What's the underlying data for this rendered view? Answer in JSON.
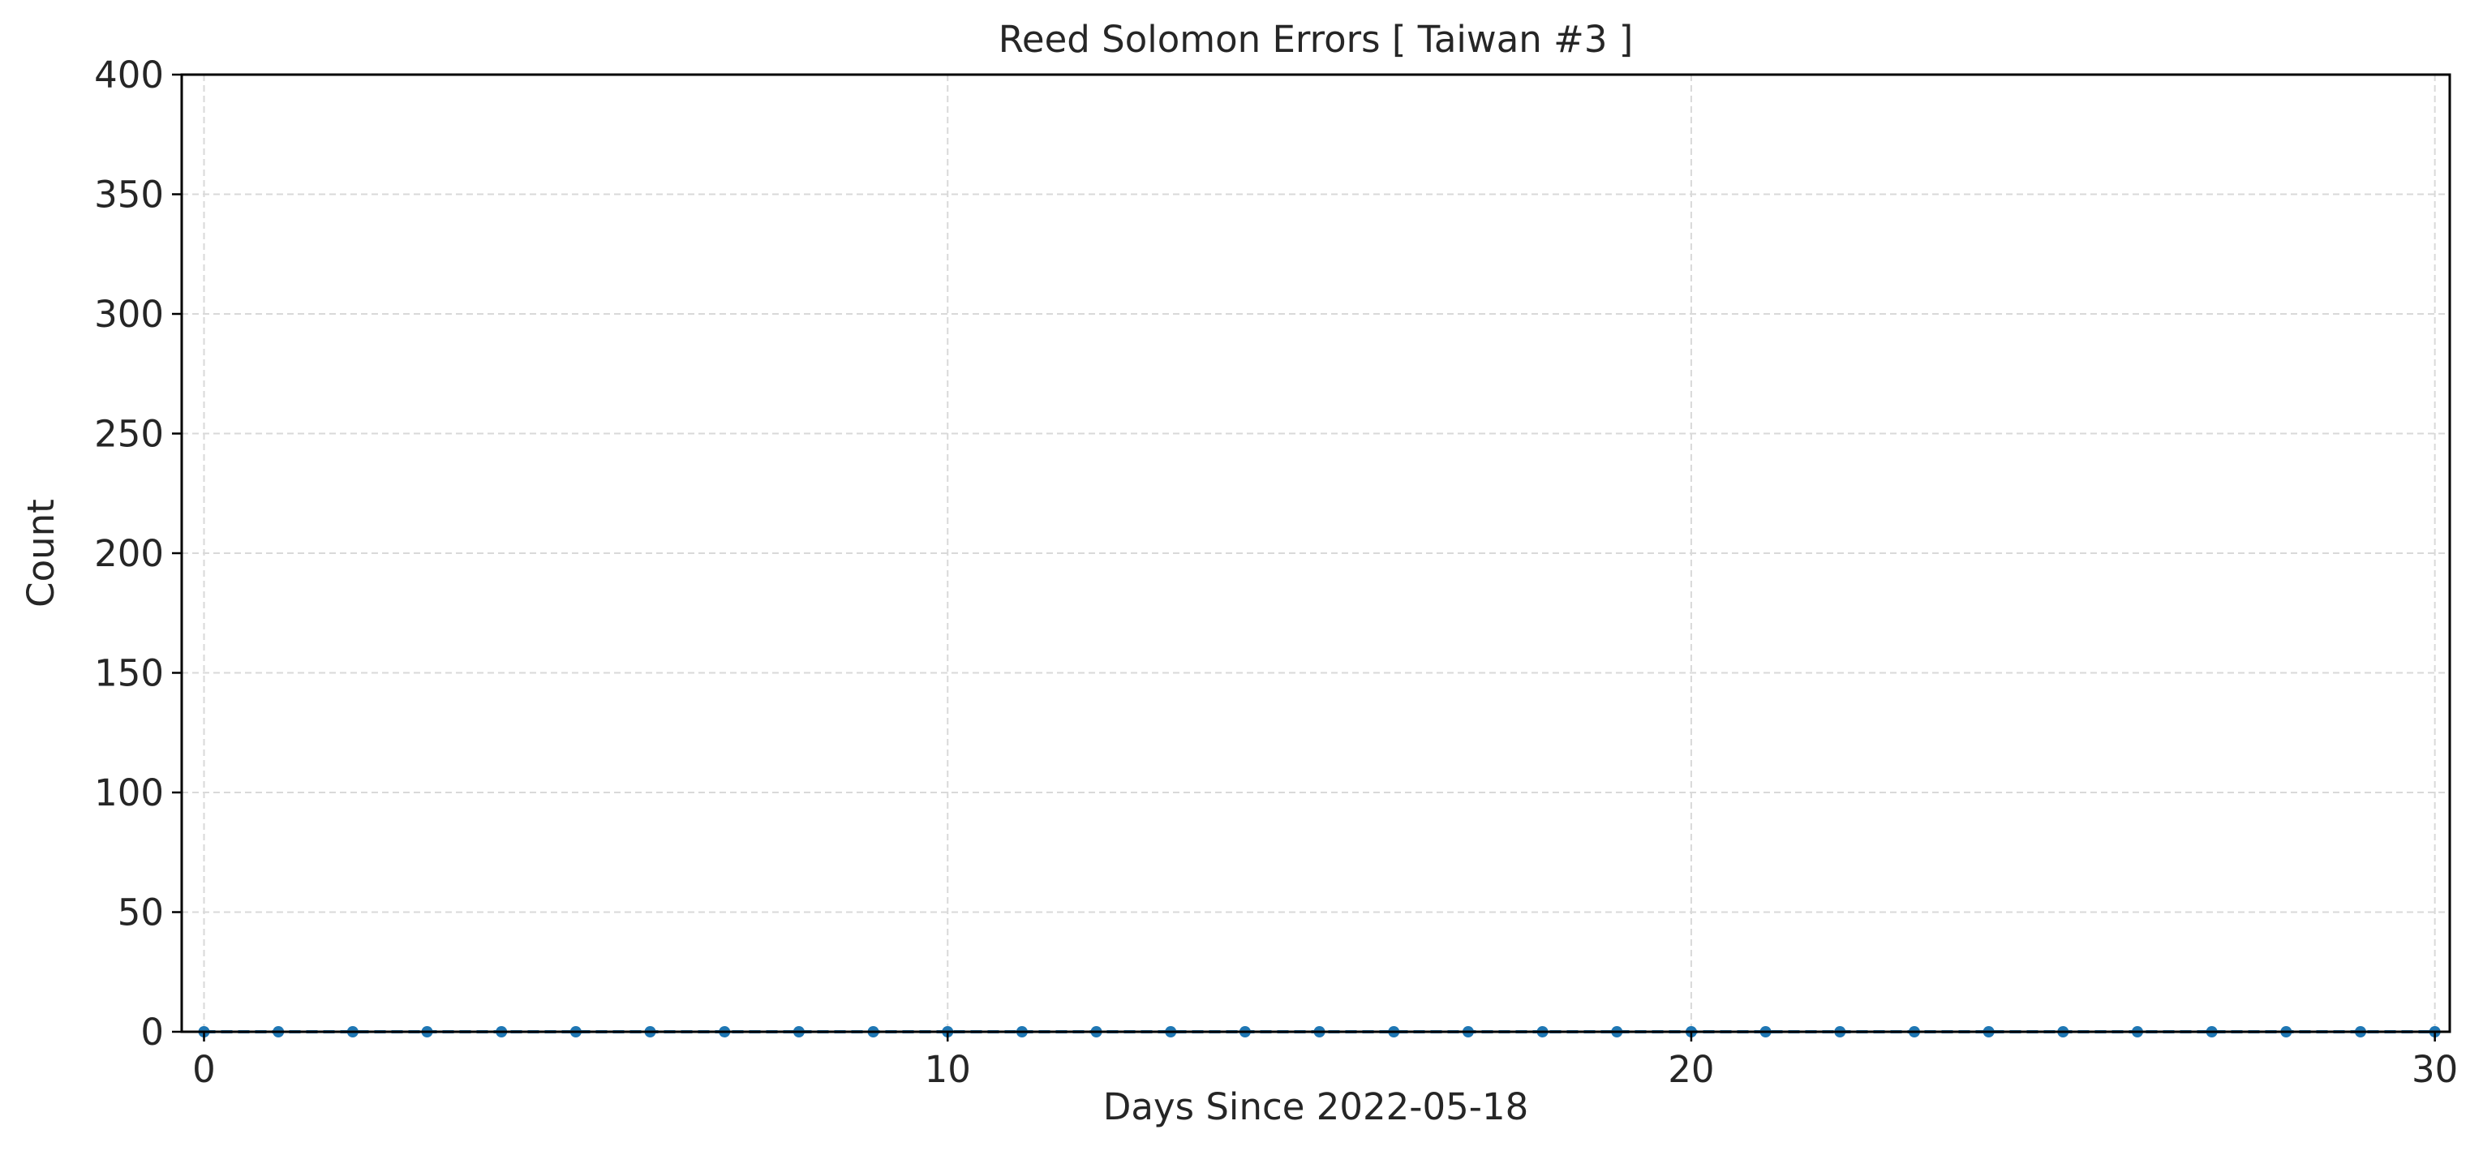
{
  "chart_data": {
    "type": "line",
    "title": "Reed Solomon Errors [ Taiwan #3 ]",
    "xlabel": "Days Since 2022-05-18",
    "ylabel": "Count",
    "xlim": [
      -0.3,
      30.2
    ],
    "ylim": [
      0,
      400
    ],
    "x_ticks": [
      0,
      10,
      20,
      30
    ],
    "y_ticks": [
      0,
      50,
      100,
      150,
      200,
      250,
      300,
      350,
      400
    ],
    "grid": true,
    "legend": "none",
    "series": [
      {
        "color": "#1f77b4",
        "x": [
          0,
          1,
          2,
          3,
          4,
          5,
          6,
          7,
          8,
          9,
          10,
          11,
          12,
          13,
          14,
          15,
          16,
          17,
          18,
          19,
          20,
          21,
          22,
          23,
          24,
          25,
          26,
          27,
          28,
          29,
          30
        ],
        "y": [
          0,
          0,
          0,
          0,
          0,
          0,
          0,
          0,
          0,
          0,
          0,
          0,
          0,
          0,
          0,
          0,
          0,
          0,
          0,
          0,
          0,
          0,
          0,
          0,
          0,
          0,
          0,
          0,
          0,
          0,
          0
        ]
      }
    ]
  }
}
